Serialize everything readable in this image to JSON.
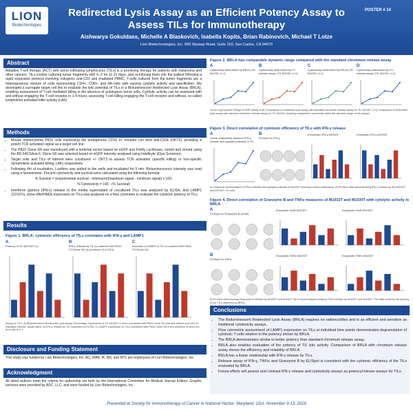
{
  "header": {
    "logo": "LION",
    "logo_sub": "Biotechnologies",
    "title": "Redirected Lysis Assay as an Efficient Potency Assay to Assess TILs for Immunotherapy",
    "authors": "Aishwarya Gokuldass, Michelle A Blaskovich, Isabella Kopits, Brian Rabinovich, Michael T Lotze",
    "affiliation": "Lion Biotechnologies, Inc. 999 Skyway Road, Suite 150, San Carlos, CA 94070",
    "poster_number": "POSTER # 14"
  },
  "abstract": {
    "heading": "Abstract",
    "text": "Adoptive T-cell therapy (ACT) with tumor infiltrating lymphocytes (TILs) is a promising therapy for patients with melanoma and other cancers. TILs involve culturing tumor fragments with IL-2 for 11-21 days, and re-infusing them into the patient following a rapid expansion protocol involving mitogenic anti-CD3 and irradiated PBMC. T-cells cultured from the tumor fragments are a heterogeneous mixture of cells representing CD4+, CD8+, and NK-cells with varying cytolytic activity and specificities. We developed a surrogate target cell line to evaluate the lytic potential of TILs in a Bioluminescent Redirected Lysis Assay (BRLA), enabling assessment of T-cell mediated killing in the absence of autologous tumor cells. Cytolytic activity can be assessed with and without engaging the T-cell receptor in 1-4 hours, assessing T-cell killing engaging the T-cell receptor and without, so-called lymphokine activated killer activity (LAK)."
  },
  "methods": {
    "heading": "Methods",
    "bullets": [
      "Mouse mastocytoma P815 cells expressing the endogenous CD16 Fc receptor can bind anti-CD3ε (OKT3), providing a potent TCR activation signal as a target cell line.",
      "The P815 Clone G6 was transduced with a lentiviral vector based on eGFP and Firefly Luciferase, sorted and cloned using the BD FACSAria II. Clone G6 was selected based on eGFP intensity analyzed using Intellicyte (iQue Screener).",
      "Target cells and TILs of interest were cocultured +/- OKT3 to assess TCR activation (specific killing) or non-specific (lymphokine activated killing, LAK) respectively.",
      "Following 4hr of incubation, Luciferin was added to the wells and incubated for 5 min. Bioluminescence intensity was read using a luminometer. Percent cytotoxicity and survival were calculated using the following formula:"
    ],
    "formula_1": "% Survival = (experimental survival - minimum)/(maximum signal - minimum signal) x 100;",
    "formula_2": "% Cytotoxicity = 100 - (% Survival)",
    "bullets_2": [
      "Interferon gamma (IFN-γ) release in the media supernatant of cocultured TILs was analyzed by ELISA, and LAMP1 (CD107a, clone eBioH4A3) expression on TILs was analyzed on a flow cytometer to evaluate the cytotoxic potency of TILs."
    ]
  },
  "results": {
    "heading": "Results"
  },
  "figure_1": {
    "title": "Figure 1. BRLA: cytotoxic efficiency of TILs correlates with IFN-γ and LAMP1",
    "panels": [
      {
        "label": "A",
        "title": "Potency of TIL (M1032T-1)"
      },
      {
        "label": "B",
        "title": "IFN-γ release by TIL co-cultured with P815-FC/Clone G6 (in presence of α-CD3)"
      },
      {
        "label": "C",
        "title": "Induction of LAMP1 in TIL co-cultured with P815-FC/Clone G6"
      }
    ],
    "caption": "Assay for TILs. A) Bioluminescent Redirected Lysis Assay: Percentage Cytotoxicity of TIL M1032T-1 when cocultured with P815 Clone G6 with and without anti-CD3 at indicated Effector: Target ratios. B) IFN-γ release by TIL measured by ELISA. C) LAMP1 expression on TILs cocultured with P815 Clone G6 in the presence of anti-CD3 at a ratio of 1:1."
  },
  "disclosure": {
    "heading": "Disclosure and Funding Statement",
    "text": "This study was funded by Lion Biotechnologies, Inc. AG, MAB, IK, BR, and MTL are employees of Lion Biotechnologies, Inc."
  },
  "acknowledgment": {
    "heading": "Acknowledgment",
    "text": "All listed authors meet the criteria for authorship set forth by the International Committee for Medical Journal Editors. Graphic services were provided by ADC, LLC, and were funded by Lion Biotechnologies, Inc."
  },
  "figure_2": {
    "title": "Figure 2. BRLA has comparable dynamic range compared with the standard chromium release assay",
    "panels": [
      {
        "label": "A",
        "title": "Cytotoxicity determined by BRLA (TIL M1030, n=1)"
      },
      {
        "label": "B",
        "title": "Cytotoxicity determined by FC-release assay (TIL M1030, n=1)"
      },
      {
        "label": "C",
        "title": "Cytotoxicity determined by BRLA (TIL M1032, n=1)"
      },
      {
        "label": "D",
        "title": "Cytotoxicity determined by FC-release assay (TIL M1032, n=1)"
      }
    ],
    "caption": "Three Log Dynamic Range for BRL Assay. A-B) Comparison of redirected lysis assay with standard chromium release assay for TIL M1030. C-D) Comparison of redirected lysis assay with standard chromium release assay for TIL M1032, showing comparable cytotoxicity within the dynamic range of the assays."
  },
  "figure_3": {
    "title": "Figure 3. Direct correlation of cytotoxic efficiency of TILs with IFN-γ release",
    "panels": [
      {
        "label": "A",
        "title": "Linear relationship between IFN-γ release and cytolytic potential of TIL"
      },
      {
        "label": "B",
        "title": "ELISpot for IFN-γ"
      },
      {
        "label": "",
        "title": "Enzymatic IFN-γ M1032T"
      },
      {
        "label": "",
        "title": "Enzymatic IFN-γ M1030T"
      }
    ],
    "caption": "A) Graphical representation of IFN-γ release and cytolytic potential of M1032T showing a linear relationship. B) ELISpot data demonstrating IFN-γ release by the M1032T and M1030T TIL cells."
  },
  "figure_4": {
    "title": "Figure 4. Direct correlation of Granzyme B and TNFα measures of M1032T and M1030T with cytolytic activity in BRLA",
    "panels": [
      {
        "label": "A",
        "title": "ELISpot for Granzyme B (GrzB)"
      },
      {
        "label": "",
        "title": "Enzymatic GrzB M1032T"
      },
      {
        "label": "",
        "title": "Enzymatic GrzB M1030T"
      },
      {
        "label": "B",
        "title": "ELISpot for TNFα"
      },
      {
        "label": "",
        "title": "Enzymatic TNFα M1032T"
      },
      {
        "label": "",
        "title": "Enzymatic TNFα M1030T"
      }
    ],
    "caption": "A) ELISpot data showing Granzyme B release by M1032T and M1030T. B) ELISpot analysis showing TNFα release by M1032T and M1030T. This data confirms the potency of the TILs observed by BRLA."
  },
  "conclusions": {
    "heading": "Conclusions",
    "bullets": [
      "The Bioluminescent Redirected Lysis Assay (BRLA) requires no radionuclides and is as efficient and sensitive as traditional cytotoxicity assays.",
      "Flow cytometric assessment of LAMP1 expression on TILs at individual time points demonstrates degranulation of cytotoxic T-cells relative to the potency shown by BRLA.",
      "The BRLA demonstrates similar to better potency than standard chromium release assay.",
      "BRLA also enables evaluation of the potency of TIL lytic activity. Comparison of BRLA with chromium release assay shows the efficiency and reliability of BRLA.",
      "BRLA has a linear relationship with IFN-γ release by TILs.",
      "Release assay of IFN-γ, TNFα, and Granzyme B by ELISpot is consistent with the cytotoxic efficiency of the TILs evaluated by BRLA.",
      "Future efforts will assess and contrast IFN-γ release and cytotoxicity assays as potency/release assays for TILs."
    ]
  },
  "footer": "Presented at Society for Immunotherapy of Cancer in National Harbor, Maryland, USA, November 9-13, 2016"
}
